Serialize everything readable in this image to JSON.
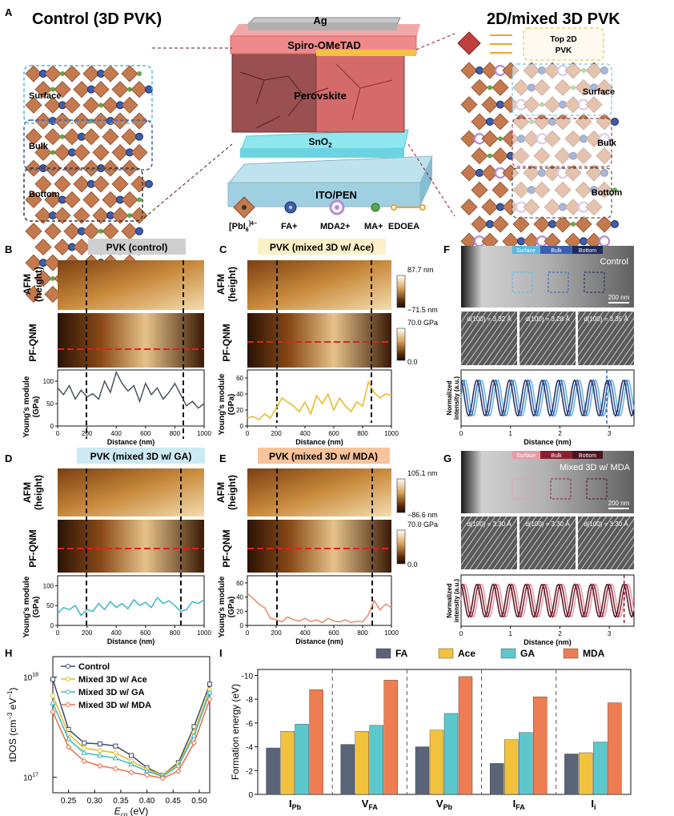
{
  "panel_letters": {
    "A": "A",
    "B": "B",
    "C": "C",
    "D": "D",
    "E": "E",
    "F": "F",
    "G": "G",
    "H": "H",
    "I": "I"
  },
  "panelA": {
    "left_title": "Control (3D PVK)",
    "right_title": "2D/mixed 3D PVK",
    "stack_layers": [
      "Ag",
      "Spiro-OMeTAD",
      "Perovskite",
      "SnO",
      "ITO/PEN"
    ],
    "sno2_subscript": "2",
    "left_regions": [
      "Surface",
      "Bulk",
      "Bottom"
    ],
    "right_regions": [
      "Top 2D PVK",
      "Surface",
      "Bulk",
      "Bottom"
    ],
    "top2d_line1": "Top 2D",
    "top2d_line2": "PVK",
    "legend": [
      {
        "label": "[PbI",
        "sub": "6",
        "sup": "]4−",
        "icon": "octahedron-icon"
      },
      {
        "label": "FA+",
        "icon": "blue-sphere-icon",
        "color": "#3a5fb0"
      },
      {
        "label": "MDA2+",
        "icon": "purple-sphere-icon",
        "color": "#b889d8"
      },
      {
        "label": "MA+",
        "icon": "green-sphere-icon",
        "color": "#5ca84a"
      },
      {
        "label": "EDOEA",
        "icon": "orange-linker-icon",
        "color": "#f0a531"
      }
    ]
  },
  "afm_panels": {
    "B": {
      "title": "PVK (control)",
      "title_bg": "#cfcfcf"
    },
    "C": {
      "title": "PVK (mixed 3D w/ Ace)",
      "title_bg": "#fbf0c8"
    },
    "D": {
      "title": "PVK (mixed 3D w/ GA)",
      "title_bg": "#cde9f3"
    },
    "E": {
      "title": "PVK (mixed 3D w/ MDA)",
      "title_bg": "#f6c39a"
    },
    "row_labels": {
      "afm1": "AFM",
      "afm2": "(height)",
      "pf": "PF-QNM",
      "ym1": "Young's module",
      "ym2": "(GPa)"
    },
    "xlabel": "Distance (nm)",
    "xticks": [
      "0",
      "200",
      "400",
      "600",
      "800",
      "1000"
    ],
    "yticks_BD": [
      "0",
      "50",
      "100"
    ],
    "yticks_C": [
      "0",
      "20",
      "40",
      "60"
    ],
    "yticks_E": [
      "0",
      "20",
      "40",
      "60"
    ],
    "scale_C": {
      "top": "87.7 nm",
      "bottom": "−71.5 nm",
      "pf_top": "70.0 GPa",
      "pf_bottom": "0.0"
    },
    "scale_E": {
      "top": "105.1 nm",
      "bottom": "−86.6 nm",
      "pf_top": "70.0 GPa",
      "pf_bottom": "0.0"
    }
  },
  "line_data": {
    "B": {
      "color": "#4a5560",
      "ylim": [
        0,
        125
      ],
      "x": [
        0,
        40,
        80,
        120,
        160,
        200,
        240,
        280,
        320,
        360,
        400,
        440,
        480,
        520,
        560,
        600,
        640,
        680,
        720,
        760,
        800,
        840,
        880,
        920,
        960,
        1000
      ],
      "y": [
        85,
        70,
        90,
        60,
        80,
        65,
        72,
        60,
        100,
        75,
        120,
        95,
        78,
        90,
        55,
        95,
        70,
        85,
        60,
        75,
        95,
        70,
        45,
        55,
        40,
        50
      ]
    },
    "C": {
      "color": "#e8b923",
      "ylim": [
        0,
        70
      ],
      "x": [
        0,
        40,
        80,
        120,
        160,
        200,
        240,
        280,
        320,
        360,
        400,
        440,
        480,
        520,
        560,
        600,
        640,
        680,
        720,
        760,
        800,
        840,
        880,
        920,
        960,
        1000
      ],
      "y": [
        10,
        12,
        8,
        15,
        10,
        22,
        35,
        30,
        25,
        18,
        30,
        15,
        38,
        28,
        40,
        20,
        35,
        25,
        18,
        30,
        25,
        55,
        42,
        35,
        40,
        38
      ]
    },
    "D": {
      "color": "#3ab8c5",
      "ylim": [
        0,
        125
      ],
      "x": [
        0,
        40,
        80,
        120,
        160,
        200,
        240,
        280,
        320,
        360,
        400,
        440,
        480,
        520,
        560,
        600,
        640,
        680,
        720,
        760,
        800,
        840,
        880,
        920,
        960,
        1000
      ],
      "y": [
        30,
        45,
        40,
        50,
        25,
        40,
        35,
        55,
        40,
        60,
        45,
        55,
        42,
        65,
        50,
        58,
        45,
        70,
        55,
        62,
        50,
        35,
        40,
        60,
        55,
        65
      ]
    },
    "E": {
      "color": "#e88a66",
      "ylim": [
        0,
        70
      ],
      "x": [
        0,
        40,
        80,
        120,
        160,
        200,
        240,
        280,
        320,
        360,
        400,
        440,
        480,
        520,
        560,
        600,
        640,
        680,
        720,
        760,
        800,
        840,
        880,
        920,
        960,
        1000
      ],
      "y": [
        45,
        38,
        30,
        25,
        10,
        8,
        5,
        12,
        8,
        6,
        10,
        5,
        8,
        4,
        10,
        6,
        5,
        8,
        4,
        6,
        5,
        15,
        35,
        22,
        30,
        25
      ]
    }
  },
  "tem_panels": {
    "F": {
      "tabs": [
        "Surface",
        "Bulk",
        "Bottom"
      ],
      "tab_colors": [
        "#5bb8e0",
        "#3a5fb0",
        "#1f2a5a"
      ],
      "corner_label": "Control",
      "scalebar": "200 nm",
      "d_spacings": [
        "d(100) = 3.32 Å",
        "d(100) = 3.28 Å",
        "d(100) = 3.35 Å"
      ]
    },
    "G": {
      "tabs": [
        "Surface",
        "Bulk",
        "Bottom"
      ],
      "tab_colors": [
        "#e89aa8",
        "#8a2030",
        "#4a1520"
      ],
      "corner_label": "Mixed 3D w/ MDA",
      "scalebar": "200 nm",
      "d_spacings": [
        "d(100) = 3.30 Å",
        "d(100) = 3.30 Å",
        "d(100) = 3.30 Å"
      ]
    },
    "ylabel1": "Normalized",
    "ylabel2": "intensity (a.u.)",
    "xlabel": "Distance (nm)",
    "xticks": [
      "0",
      "1",
      "2",
      "3"
    ]
  },
  "chart_data": [
    {
      "type": "line",
      "panel": "H",
      "xlabel": "E",
      "xlabel_sub": "co",
      "xlabel_unit": " (eV)",
      "ylabel": "tDOS (cm",
      "ylabel_tail": " eV",
      "yscale": "log",
      "xlim": [
        0.22,
        0.52
      ],
      "x_ticks": [
        "0.25",
        "0.30",
        "0.35",
        "0.40",
        "0.45",
        "0.50"
      ],
      "y_ticks": [
        "10",
        "10"
      ],
      "y_tick_exps": [
        "18",
        "17"
      ],
      "series": [
        {
          "name": "Control",
          "color": "#3d4a6b",
          "marker": "square",
          "x": [
            0.22,
            0.25,
            0.28,
            0.31,
            0.34,
            0.37,
            0.4,
            0.43,
            0.46,
            0.49,
            0.52
          ],
          "y": [
            9.5e+17,
            3e+17,
            2.2e+17,
            2.15e+17,
            2.05e+17,
            1.65e+17,
            1.25e+17,
            1.05e+17,
            1.4e+17,
            3.2e+17,
            8.5e+17
          ]
        },
        {
          "name": "Mixed 3D w/ Ace",
          "color": "#e8b923",
          "marker": "circle",
          "x": [
            0.22,
            0.25,
            0.28,
            0.31,
            0.34,
            0.37,
            0.4,
            0.43,
            0.46,
            0.49,
            0.52
          ],
          "y": [
            6.5e+17,
            2.7e+17,
            1.95e+17,
            1.85e+17,
            1.75e+17,
            1.45e+17,
            1.2e+17,
            1.05e+17,
            1.35e+17,
            2.8e+17,
            7.5e+17
          ]
        },
        {
          "name": "Mixed 3D w/ GA",
          "color": "#3ab8c5",
          "marker": "triangle",
          "x": [
            0.22,
            0.25,
            0.28,
            0.31,
            0.34,
            0.37,
            0.4,
            0.43,
            0.46,
            0.49,
            0.52
          ],
          "y": [
            5.5e+17,
            2.4e+17,
            1.75e+17,
            1.65e+17,
            1.55e+17,
            1.35e+17,
            1.15e+17,
            1.02e+17,
            1.3e+17,
            2.6e+17,
            7e+17
          ]
        },
        {
          "name": "Mixed 3D w/ MDA",
          "color": "#e8704a",
          "marker": "diamond",
          "x": [
            0.22,
            0.25,
            0.28,
            0.31,
            0.34,
            0.37,
            0.4,
            0.43,
            0.46,
            0.49,
            0.52
          ],
          "y": [
            4.5e+17,
            2e+17,
            1.45e+17,
            1.3e+17,
            1.22e+17,
            1.12e+17,
            1.05e+17,
            9.8e+16,
            1.15e+17,
            2.2e+17,
            6e+17
          ]
        }
      ]
    },
    {
      "type": "bar",
      "panel": "I",
      "ylabel": "Formation energy (eV)",
      "ylim": [
        0,
        -10
      ],
      "y_ticks": [
        "0",
        "-2",
        "-4",
        "-6",
        "-8",
        "-10"
      ],
      "categories": [
        "I",
        "V",
        "V",
        "I",
        "I"
      ],
      "category_subs": [
        "Pb",
        "FA",
        "Pb",
        "FA",
        "i"
      ],
      "series": [
        {
          "name": "FA",
          "color": "#5a6478",
          "values": [
            -3.9,
            -4.2,
            -4.0,
            -2.6,
            -3.4
          ]
        },
        {
          "name": "Ace",
          "color": "#f2c23e",
          "values": [
            -5.3,
            -5.3,
            -5.4,
            -4.6,
            -3.5
          ]
        },
        {
          "name": "GA",
          "color": "#5cc8cc",
          "values": [
            -5.9,
            -5.8,
            -6.8,
            -5.2,
            -4.4
          ]
        },
        {
          "name": "MDA",
          "color": "#ef7d52",
          "values": [
            -8.8,
            -9.6,
            -9.9,
            -8.2,
            -7.7
          ]
        }
      ]
    }
  ]
}
